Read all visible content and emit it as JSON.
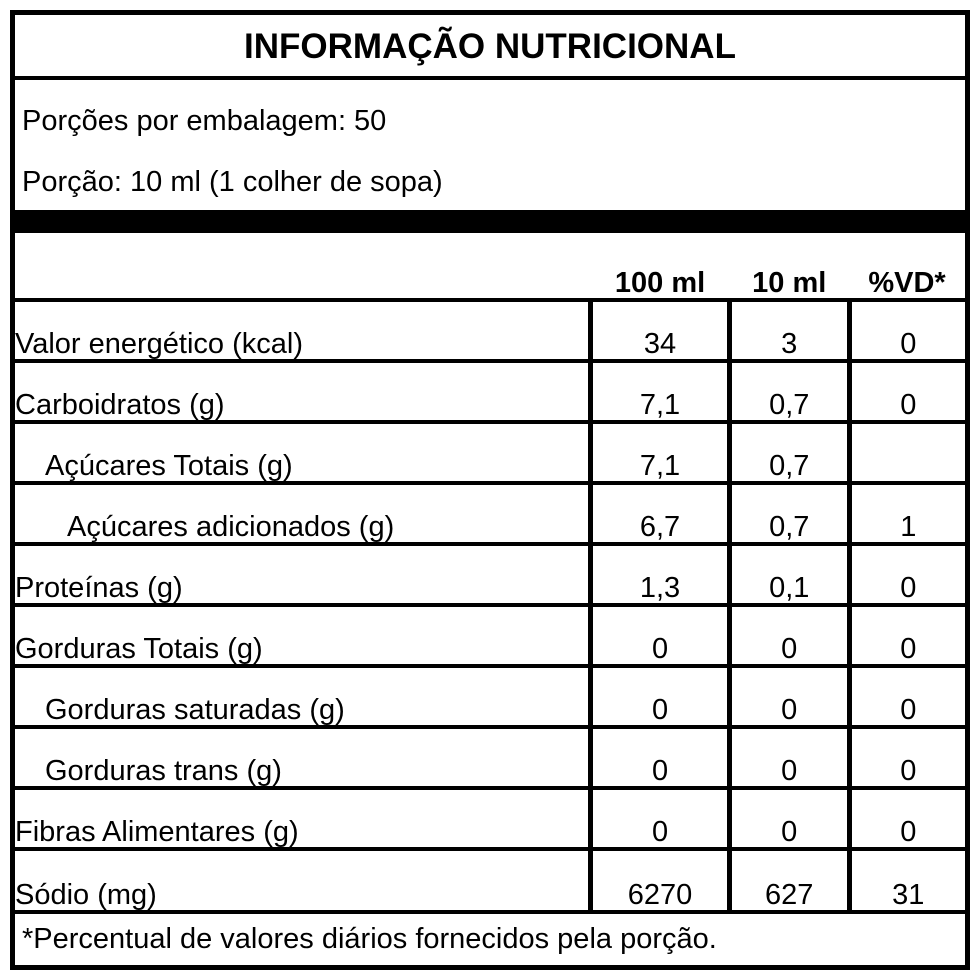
{
  "title": "INFORMAÇÃO NUTRICIONAL",
  "serving_info": {
    "servings_per_package": "Porções por embalagem: 50",
    "serving_size": "Porção: 10 ml (1 colher de sopa)"
  },
  "table": {
    "columns": [
      "100 ml",
      "10 ml",
      "%VD*"
    ],
    "rows": [
      {
        "label": "Valor energético (kcal)",
        "v100": "34",
        "v10": "3",
        "vd": "0"
      },
      {
        "label": "Carboidratos (g)",
        "v100": "7,1",
        "v10": "0,7",
        "vd": "0"
      },
      {
        "label": "Açúcares Totais (g)",
        "v100": "7,1",
        "v10": "0,7",
        "vd": ""
      },
      {
        "label": "Açúcares adicionados (g)",
        "v100": "6,7",
        "v10": "0,7",
        "vd": "1"
      },
      {
        "label": "Proteínas (g)",
        "v100": "1,3",
        "v10": "0,1",
        "vd": "0"
      },
      {
        "label": "Gorduras Totais (g)",
        "v100": "0",
        "v10": "0",
        "vd": "0"
      },
      {
        "label": "Gorduras saturadas (g)",
        "v100": "0",
        "v10": "0",
        "vd": "0"
      },
      {
        "label": "Gorduras trans (g)",
        "v100": "0",
        "v10": "0",
        "vd": "0"
      },
      {
        "label": "Fibras Alimentares (g)",
        "v100": "0",
        "v10": "0",
        "vd": "0"
      },
      {
        "label": "Sódio (mg)",
        "v100": "6270",
        "v10": "627",
        "vd": "31"
      }
    ],
    "footnote": "*Percentual de valores diários fornecidos pela porção."
  },
  "colors": {
    "border": "#000000",
    "background": "#ffffff",
    "text": "#000000"
  }
}
